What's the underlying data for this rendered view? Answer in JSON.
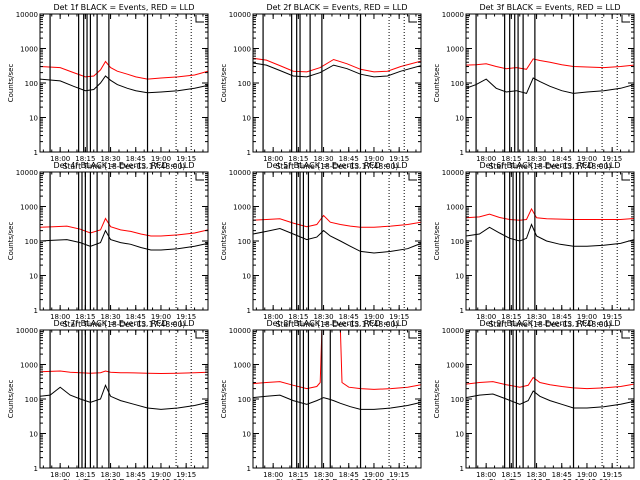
{
  "figure": {
    "xlabel": "Start Time (18-Dec-13 17:48:00)",
    "ylabel": "Counts/sec",
    "colors": {
      "events": "#000000",
      "lld": "#ff0000"
    }
  },
  "chart_data": [
    {
      "type": "line",
      "title": "Det 1f BLACK = Events, RED = LLD",
      "xlabel": "Start Time (18-Dec-13 17:48:00)",
      "ylabel": "Counts/sec",
      "xlim": [
        "17:48",
        "19:28"
      ],
      "xticks": [
        "18:00",
        "18:15",
        "18:30",
        "18:45",
        "19:00",
        "19:15"
      ],
      "yscale": "log",
      "ylim": [
        1,
        10000
      ],
      "yticks": [
        "1",
        "10",
        "100",
        "1000",
        "10000"
      ],
      "solid_markers": [
        "17:54",
        "18:11",
        "18:14",
        "18:16",
        "18:18",
        "18:22",
        "18:29",
        "18:52"
      ],
      "dotted_markers": [
        "19:09",
        "19:18"
      ],
      "series": [
        {
          "color": "#000000",
          "x": [
            "17:48",
            "18:00",
            "18:08",
            "18:15",
            "18:20",
            "18:24",
            "18:27",
            "18:30",
            "18:34",
            "18:40",
            "18:45",
            "18:52",
            "19:00",
            "19:10",
            "19:20",
            "19:28"
          ],
          "values": [
            130,
            115,
            80,
            60,
            65,
            100,
            160,
            120,
            90,
            70,
            60,
            52,
            55,
            60,
            70,
            85
          ]
        },
        {
          "color": "#ff0000",
          "x": [
            "17:48",
            "18:00",
            "18:08",
            "18:15",
            "18:20",
            "18:24",
            "18:27",
            "18:30",
            "18:34",
            "18:40",
            "18:45",
            "18:52",
            "19:00",
            "19:10",
            "19:20",
            "19:28"
          ],
          "values": [
            300,
            280,
            200,
            150,
            160,
            240,
            420,
            280,
            220,
            180,
            150,
            130,
            140,
            150,
            170,
            220
          ]
        }
      ]
    },
    {
      "type": "line",
      "title": "Det 2f BLACK = Events, RED = LLD",
      "xlabel": "Start Time (18-Dec-13 17:48:00)",
      "ylabel": "Counts/sec",
      "xlim": [
        "17:48",
        "19:28"
      ],
      "xticks": [
        "18:00",
        "18:15",
        "18:30",
        "18:45",
        "19:00",
        "19:15"
      ],
      "yscale": "log",
      "ylim": [
        1,
        10000
      ],
      "yticks": [
        "1",
        "10",
        "100",
        "1000",
        "10000"
      ],
      "solid_markers": [
        "17:54",
        "18:11",
        "18:14",
        "18:16",
        "18:22",
        "18:29",
        "18:52"
      ],
      "dotted_markers": [
        "19:09",
        "19:18"
      ],
      "series": [
        {
          "color": "#000000",
          "x": [
            "17:48",
            "17:56",
            "18:04",
            "18:12",
            "18:20",
            "18:28",
            "18:36",
            "18:44",
            "18:52",
            "19:00",
            "19:08",
            "19:16",
            "19:28"
          ],
          "values": [
            380,
            330,
            230,
            160,
            150,
            200,
            330,
            260,
            180,
            150,
            160,
            220,
            320
          ]
        },
        {
          "color": "#ff0000",
          "x": [
            "17:48",
            "17:56",
            "18:04",
            "18:12",
            "18:20",
            "18:28",
            "18:36",
            "18:44",
            "18:52",
            "19:00",
            "19:08",
            "19:16",
            "19:28"
          ],
          "values": [
            520,
            460,
            320,
            220,
            210,
            280,
            480,
            360,
            250,
            210,
            220,
            300,
            430
          ]
        }
      ]
    },
    {
      "type": "line",
      "title": "Det 3f BLACK = Events, RED = LLD",
      "xlabel": "Start Time (18-Dec-13 17:48:00)",
      "ylabel": "Counts/sec",
      "xlim": [
        "17:48",
        "19:28"
      ],
      "xticks": [
        "18:00",
        "18:15",
        "18:30",
        "18:45",
        "19:00",
        "19:15"
      ],
      "yscale": "log",
      "ylim": [
        1,
        10000
      ],
      "yticks": [
        "1",
        "10",
        "100",
        "1000",
        "10000"
      ],
      "solid_markers": [
        "17:54",
        "18:11",
        "18:14",
        "18:17",
        "18:19",
        "18:22",
        "18:29",
        "18:52"
      ],
      "dotted_markers": [
        "19:09",
        "19:18"
      ],
      "series": [
        {
          "color": "#000000",
          "x": [
            "17:48",
            "17:54",
            "18:00",
            "18:06",
            "18:12",
            "18:18",
            "18:24",
            "18:28",
            "18:32",
            "18:38",
            "18:45",
            "18:52",
            "19:00",
            "19:10",
            "19:20",
            "19:28"
          ],
          "values": [
            70,
            90,
            130,
            70,
            55,
            60,
            50,
            140,
            110,
            80,
            60,
            50,
            55,
            60,
            70,
            90
          ]
        },
        {
          "color": "#ff0000",
          "x": [
            "17:48",
            "17:54",
            "18:00",
            "18:06",
            "18:12",
            "18:18",
            "18:24",
            "18:28",
            "18:32",
            "18:38",
            "18:45",
            "18:52",
            "19:00",
            "19:10",
            "19:20",
            "19:28"
          ],
          "values": [
            330,
            340,
            360,
            300,
            260,
            280,
            250,
            500,
            450,
            400,
            340,
            300,
            290,
            280,
            300,
            330
          ]
        }
      ]
    },
    {
      "type": "line",
      "title": "Det 4f BLACK = Events, RED = LLD",
      "xlabel": "Start Time (18-Dec-13 17:48:00)",
      "ylabel": "Counts/sec",
      "xlim": [
        "17:48",
        "19:28"
      ],
      "xticks": [
        "18:00",
        "18:15",
        "18:30",
        "18:45",
        "19:00",
        "19:15"
      ],
      "yscale": "log",
      "ylim": [
        1,
        10000
      ],
      "yticks": [
        "1",
        "10",
        "100",
        "1000",
        "10000"
      ],
      "solid_markers": [
        "17:54",
        "18:11",
        "18:13",
        "18:15",
        "18:18",
        "18:22",
        "18:29",
        "18:52"
      ],
      "dotted_markers": [
        "19:09",
        "19:18"
      ],
      "series": [
        {
          "color": "#000000",
          "x": [
            "17:48",
            "17:56",
            "18:04",
            "18:12",
            "18:18",
            "18:24",
            "18:27",
            "18:30",
            "18:36",
            "18:42",
            "18:48",
            "18:54",
            "19:00",
            "19:10",
            "19:20",
            "19:28"
          ],
          "values": [
            100,
            105,
            110,
            90,
            70,
            90,
            200,
            110,
            90,
            80,
            65,
            55,
            55,
            60,
            70,
            85
          ]
        },
        {
          "color": "#ff0000",
          "x": [
            "17:48",
            "17:56",
            "18:04",
            "18:12",
            "18:18",
            "18:24",
            "18:27",
            "18:30",
            "18:36",
            "18:42",
            "18:48",
            "18:54",
            "19:00",
            "19:10",
            "19:20",
            "19:28"
          ],
          "values": [
            250,
            260,
            270,
            220,
            170,
            210,
            450,
            260,
            210,
            190,
            160,
            140,
            140,
            150,
            170,
            210
          ]
        }
      ]
    },
    {
      "type": "line",
      "title": "Det 5f BLACK = Events, RED = LLD",
      "xlabel": "Start Time (18-Dec-13 17:48:00)",
      "ylabel": "Counts/sec",
      "xlim": [
        "17:48",
        "19:28"
      ],
      "xticks": [
        "18:00",
        "18:15",
        "18:30",
        "18:45",
        "19:00",
        "19:15"
      ],
      "yscale": "log",
      "ylim": [
        1,
        10000
      ],
      "yticks": [
        "1",
        "10",
        "100",
        "1000",
        "10000"
      ],
      "solid_markers": [
        "17:54",
        "18:11",
        "18:14",
        "18:16",
        "18:18",
        "18:21",
        "18:29",
        "18:52"
      ],
      "dotted_markers": [
        "19:09",
        "19:18"
      ],
      "series": [
        {
          "color": "#000000",
          "x": [
            "17:48",
            "17:56",
            "18:04",
            "18:12",
            "18:20",
            "18:26",
            "18:30",
            "18:34",
            "18:40",
            "18:46",
            "18:52",
            "19:00",
            "19:10",
            "19:20",
            "19:28"
          ],
          "values": [
            160,
            190,
            230,
            160,
            110,
            130,
            200,
            140,
            100,
            70,
            50,
            45,
            50,
            60,
            85
          ]
        },
        {
          "color": "#ff0000",
          "x": [
            "17:48",
            "17:56",
            "18:04",
            "18:12",
            "18:20",
            "18:26",
            "18:30",
            "18:34",
            "18:40",
            "18:46",
            "18:52",
            "19:00",
            "19:10",
            "19:20",
            "19:28"
          ],
          "values": [
            400,
            420,
            440,
            330,
            260,
            300,
            550,
            350,
            300,
            270,
            250,
            250,
            270,
            300,
            350
          ]
        }
      ]
    },
    {
      "type": "line",
      "title": "Det 6f BLACK = Events, RED = LLD",
      "xlabel": "Start Time (18-Dec-13 17:48:00)",
      "ylabel": "Counts/sec",
      "xlim": [
        "17:48",
        "19:28"
      ],
      "xticks": [
        "18:00",
        "18:15",
        "18:30",
        "18:45",
        "19:00",
        "19:15"
      ],
      "yscale": "log",
      "ylim": [
        1,
        10000
      ],
      "yticks": [
        "1",
        "10",
        "100",
        "1000",
        "10000"
      ],
      "solid_markers": [
        "17:54",
        "18:11",
        "18:14",
        "18:16",
        "18:18",
        "18:20",
        "18:22",
        "18:29",
        "18:52"
      ],
      "dotted_markers": [
        "19:09",
        "19:18"
      ],
      "series": [
        {
          "color": "#000000",
          "x": [
            "17:48",
            "17:56",
            "18:02",
            "18:08",
            "18:14",
            "18:20",
            "18:24",
            "18:27",
            "18:30",
            "18:36",
            "18:44",
            "18:52",
            "19:00",
            "19:10",
            "19:20",
            "19:28"
          ],
          "values": [
            140,
            160,
            250,
            170,
            120,
            100,
            120,
            300,
            140,
            100,
            80,
            70,
            70,
            75,
            85,
            110
          ]
        },
        {
          "color": "#ff0000",
          "x": [
            "17:48",
            "17:56",
            "18:02",
            "18:08",
            "18:14",
            "18:20",
            "18:24",
            "18:27",
            "18:30",
            "18:36",
            "18:44",
            "18:52",
            "19:00",
            "19:10",
            "19:20",
            "19:28"
          ],
          "values": [
            470,
            500,
            600,
            480,
            420,
            400,
            420,
            850,
            470,
            440,
            430,
            420,
            420,
            420,
            420,
            450
          ]
        }
      ]
    },
    {
      "type": "line",
      "title": "Det 7f BLACK = Events, RED = LLD",
      "xlabel": "Start Time (18-Dec-13 17:48:00)",
      "ylabel": "Counts/sec",
      "xlim": [
        "17:48",
        "19:28"
      ],
      "xticks": [
        "18:00",
        "18:15",
        "18:30",
        "18:45",
        "19:00",
        "19:15"
      ],
      "yscale": "log",
      "ylim": [
        1,
        10000
      ],
      "yticks": [
        "1",
        "10",
        "100",
        "1000",
        "10000"
      ],
      "solid_markers": [
        "17:54",
        "18:11",
        "18:13",
        "18:15",
        "18:18",
        "18:22",
        "18:29",
        "18:52"
      ],
      "dotted_markers": [
        "19:09",
        "19:18"
      ],
      "series": [
        {
          "color": "#000000",
          "x": [
            "17:48",
            "17:54",
            "18:00",
            "18:06",
            "18:12",
            "18:18",
            "18:24",
            "18:27",
            "18:30",
            "18:36",
            "18:44",
            "18:52",
            "19:00",
            "19:10",
            "19:20",
            "19:28"
          ],
          "values": [
            120,
            130,
            220,
            130,
            100,
            80,
            100,
            250,
            120,
            90,
            70,
            55,
            50,
            55,
            65,
            80
          ]
        },
        {
          "color": "#ff0000",
          "x": [
            "17:48",
            "17:54",
            "18:00",
            "18:06",
            "18:12",
            "18:18",
            "18:24",
            "18:27",
            "18:30",
            "18:36",
            "18:44",
            "18:52",
            "19:00",
            "19:10",
            "19:20",
            "19:28"
          ],
          "values": [
            620,
            630,
            650,
            600,
            580,
            560,
            580,
            650,
            600,
            580,
            570,
            560,
            550,
            560,
            580,
            600
          ]
        }
      ]
    },
    {
      "type": "line",
      "title": "Det 8f BLACK = Events, RED = LLD",
      "xlabel": "Start Time (18-Dec-13 17:48:00)",
      "ylabel": "Counts/sec",
      "xlim": [
        "17:48",
        "19:28"
      ],
      "xticks": [
        "18:00",
        "18:15",
        "18:30",
        "18:45",
        "19:00",
        "19:15"
      ],
      "yscale": "log",
      "ylim": [
        1,
        10000
      ],
      "yticks": [
        "1",
        "10",
        "100",
        "1000",
        "10000"
      ],
      "solid_markers": [
        "17:54",
        "18:11",
        "18:14",
        "18:16",
        "18:18",
        "18:21",
        "18:29",
        "18:34",
        "18:52"
      ],
      "dotted_markers": [
        "19:09",
        "19:18"
      ],
      "series": [
        {
          "color": "#000000",
          "x": [
            "17:48",
            "17:56",
            "18:04",
            "18:12",
            "18:20",
            "18:26",
            "18:30",
            "18:33",
            "18:36",
            "18:40",
            "18:46",
            "18:52",
            "19:00",
            "19:10",
            "19:20",
            "19:28"
          ],
          "values": [
            110,
            120,
            130,
            90,
            70,
            90,
            110,
            100,
            90,
            75,
            60,
            50,
            50,
            55,
            65,
            80
          ]
        },
        {
          "color": "#ff0000",
          "x": [
            "17:48",
            "17:56",
            "18:04",
            "18:12",
            "18:20",
            "18:26",
            "18:28",
            "18:29",
            "18:40",
            "18:41",
            "18:45",
            "18:52",
            "19:00",
            "19:10",
            "19:20",
            "19:28"
          ],
          "values": [
            280,
            300,
            320,
            250,
            200,
            230,
            300,
            10000,
            10000,
            300,
            220,
            200,
            190,
            200,
            220,
            260
          ]
        }
      ]
    },
    {
      "type": "line",
      "title": "Det 9f BLACK = Events, RED = LLD",
      "xlabel": "Start Time (18-Dec-13 17:48:00)",
      "ylabel": "Counts/sec",
      "xlim": [
        "17:48",
        "19:28"
      ],
      "xticks": [
        "18:00",
        "18:15",
        "18:30",
        "18:45",
        "19:00",
        "19:15"
      ],
      "yscale": "log",
      "ylim": [
        1,
        10000
      ],
      "yticks": [
        "1",
        "10",
        "100",
        "1000",
        "10000"
      ],
      "solid_markers": [
        "17:54",
        "18:11",
        "18:14",
        "18:16",
        "18:18",
        "18:22",
        "18:29",
        "18:52"
      ],
      "dotted_markers": [
        "19:09",
        "19:18"
      ],
      "series": [
        {
          "color": "#000000",
          "x": [
            "17:48",
            "17:56",
            "18:04",
            "18:12",
            "18:20",
            "18:25",
            "18:28",
            "18:32",
            "18:38",
            "18:45",
            "18:52",
            "19:00",
            "19:10",
            "19:20",
            "19:28"
          ],
          "values": [
            110,
            130,
            140,
            100,
            70,
            90,
            170,
            120,
            90,
            70,
            55,
            55,
            60,
            70,
            85
          ]
        },
        {
          "color": "#ff0000",
          "x": [
            "17:48",
            "17:56",
            "18:04",
            "18:12",
            "18:20",
            "18:25",
            "18:28",
            "18:32",
            "18:38",
            "18:45",
            "18:52",
            "19:00",
            "19:10",
            "19:20",
            "19:28"
          ],
          "values": [
            270,
            300,
            320,
            260,
            220,
            250,
            420,
            300,
            260,
            230,
            210,
            200,
            210,
            230,
            270
          ]
        }
      ]
    }
  ]
}
